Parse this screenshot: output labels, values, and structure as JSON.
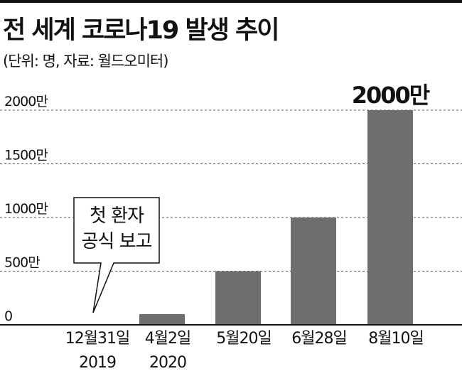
{
  "header": {
    "title": "전 세계 코로나19 발생 추이",
    "subtitle": "(단위: 명, 자료: 월드오미터)"
  },
  "chart_data": {
    "type": "bar",
    "categories": [
      [
        "12월31일",
        "2019"
      ],
      [
        "4월2일",
        "2020"
      ],
      [
        "5월20일",
        ""
      ],
      [
        "6월28일",
        ""
      ],
      [
        "8월10일",
        ""
      ]
    ],
    "values": [
      0,
      1000000,
      5000000,
      10000000,
      20000000
    ],
    "ylim": [
      0,
      20000000
    ],
    "yticks": [
      {
        "value": 0,
        "label": "0"
      },
      {
        "value": 5000000,
        "label": "500만"
      },
      {
        "value": 10000000,
        "label": "1000만"
      },
      {
        "value": 15000000,
        "label": "1500만"
      },
      {
        "value": 20000000,
        "label": "2000만"
      }
    ],
    "data_labels": [
      {
        "index": 4,
        "label": "2000만"
      }
    ],
    "annotation": {
      "index": 0,
      "lines": [
        "첫 환자",
        "공식 보고"
      ]
    },
    "grid": "dashed-horizontal",
    "colors": {
      "bar": "#6e6e6e",
      "grid": "#555555",
      "axis": "#111111"
    }
  }
}
